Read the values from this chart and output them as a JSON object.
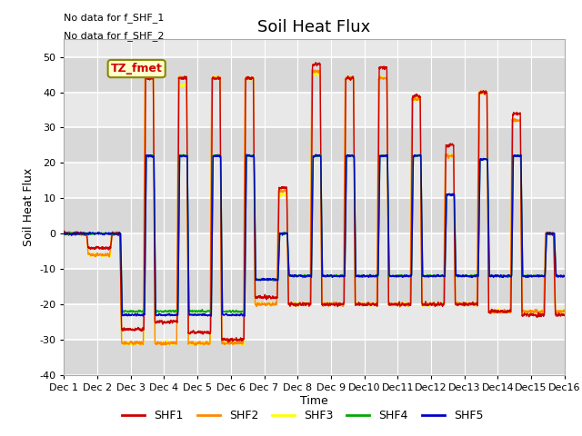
{
  "title": "Soil Heat Flux",
  "ylabel": "Soil Heat Flux",
  "xlabel": "Time",
  "xlim": [
    0,
    15
  ],
  "ylim": [
    -40,
    55
  ],
  "yticks": [
    -40,
    -30,
    -20,
    -10,
    0,
    10,
    20,
    30,
    40,
    50
  ],
  "xtick_labels": [
    "Dec 1",
    "Dec 2",
    "Dec 3",
    "Dec 4",
    "Dec 5",
    "Dec 6",
    "Dec 7",
    "Dec 8",
    "Dec 9",
    "Dec10",
    "Dec11",
    "Dec12",
    "Dec13",
    "Dec14",
    "Dec15",
    "Dec16"
  ],
  "xtick_positions": [
    0,
    1,
    2,
    3,
    4,
    5,
    6,
    7,
    8,
    9,
    10,
    11,
    12,
    13,
    14,
    15
  ],
  "colors": {
    "SHF1": "#cc0000",
    "SHF2": "#ff8800",
    "SHF3": "#ffff00",
    "SHF4": "#00aa00",
    "SHF5": "#0000cc"
  },
  "annotation_lines": [
    "No data for f_SHF_1",
    "No data for f_SHF_2"
  ],
  "tz_label": "TZ_fmet",
  "plot_bg_color": "#e8e8e8",
  "grid_color": "#ffffff",
  "title_fontsize": 13,
  "axis_fontsize": 9,
  "tick_fontsize": 8,
  "figsize": [
    6.4,
    4.8
  ],
  "dpi": 100
}
